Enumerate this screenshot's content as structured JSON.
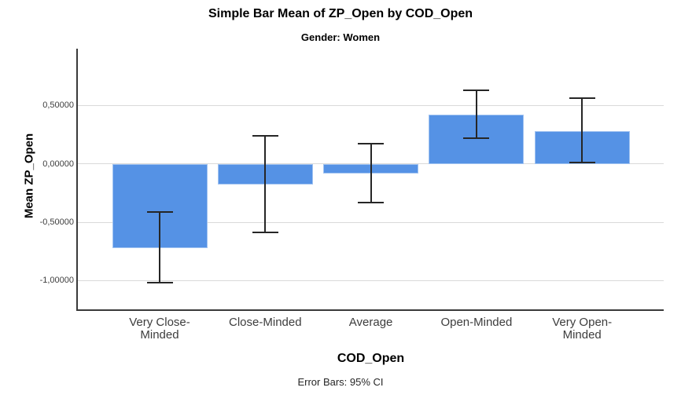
{
  "header": {
    "title": "Simple Bar Mean of ZP_Open by COD_Open",
    "subtitle": "Gender: Women"
  },
  "footer": {
    "note": "Error Bars: 95% CI"
  },
  "chart_data": {
    "type": "bar",
    "title": "Simple Bar Mean of ZP_Open by COD_Open",
    "subtitle": "Gender: Women",
    "xlabel": "COD_Open",
    "ylabel": "Mean ZP_Open",
    "categories": [
      "Very Close-Minded",
      "Close-Minded",
      "Average",
      "Open-Minded",
      "Very Open-Minded"
    ],
    "category_label_lines": [
      [
        "Very Close-",
        "Minded"
      ],
      [
        "Close-Minded"
      ],
      [
        "Average"
      ],
      [
        "Open-Minded"
      ],
      [
        "Very Open-",
        "Minded"
      ]
    ],
    "values": [
      -0.72,
      -0.18,
      -0.08,
      0.42,
      0.28
    ],
    "error_bars": {
      "label": "95% CI",
      "low": [
        -1.02,
        -0.59,
        -0.33,
        0.22,
        0.01
      ],
      "high": [
        -0.41,
        0.24,
        0.17,
        0.63,
        0.56
      ]
    },
    "yticks": [
      {
        "value": 0.5,
        "label": "0,50000"
      },
      {
        "value": 0.0,
        "label": "0,00000"
      },
      {
        "value": -0.5,
        "label": "-0,50000"
      },
      {
        "value": -1.0,
        "label": "-1,00000"
      }
    ],
    "ylim": [
      -1.246,
      0.987
    ],
    "grid": "horizontal",
    "legend": "none",
    "colors": {
      "bar_fill": "#5592E5",
      "error_bar": "#262626",
      "gridline": "#D9D9D9",
      "axis_line": "#3a3a3a",
      "tick_label": "#3d3d3d",
      "title_text": "#000000"
    }
  }
}
